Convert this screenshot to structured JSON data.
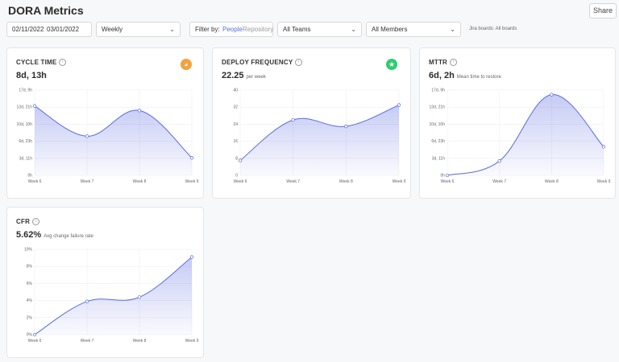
{
  "page": {
    "title": "DORA Metrics",
    "share_label": "Share"
  },
  "filters": {
    "date_from": "02/11/2022",
    "date_to": "03/01/2022",
    "granularity": "Weekly",
    "filter_by_label": "Filter by:",
    "filter_people": "People",
    "filter_repository": "Repository",
    "teams": "All Teams",
    "members": "All Members",
    "jira_boards": "Jira boards: All boards"
  },
  "colors": {
    "accent": "#5b6be1",
    "fill": "#dfe2fb",
    "badge_orange": "#f4a23a",
    "badge_green": "#2ecc71"
  },
  "cards": [
    {
      "title": "CYCLE TIME",
      "value": "8d, 13h",
      "subtitle": "",
      "badge_icon": "speedometer-icon"
    },
    {
      "title": "DEPLOY FREQUENCY",
      "value": "22.25",
      "subtitle": "per week",
      "badge_icon": "trophy-icon"
    },
    {
      "title": "MTTR",
      "value": "6d, 2h",
      "subtitle": "Mean time to restore",
      "badge_icon": ""
    },
    {
      "title": "CFR",
      "value": "5.62%",
      "subtitle": "Avg change failure rate",
      "badge_icon": ""
    }
  ],
  "chart_data": [
    {
      "type": "area",
      "categories": [
        "Week 6",
        "Week 7",
        "Week 8",
        "Week 9"
      ],
      "y_ticks": [
        "0h",
        "3d, 11h",
        "6d, 23h",
        "10d, 10h",
        "13d, 21h",
        "17d, 9h"
      ],
      "values_hours": [
        408,
        230,
        381,
        103
      ],
      "ylim": [
        0,
        501
      ]
    },
    {
      "type": "area",
      "categories": [
        "Week 6",
        "Week 7",
        "Week 8",
        "Week 9"
      ],
      "y_ticks": [
        "0",
        "8",
        "16",
        "24",
        "32",
        "40"
      ],
      "values": [
        7,
        26,
        23,
        33
      ],
      "ylim": [
        0,
        40
      ]
    },
    {
      "type": "area",
      "categories": [
        "Week 6",
        "Week 7",
        "Week 8",
        "Week 9"
      ],
      "y_ticks": [
        "0h",
        "3d, 11h",
        "6d, 23h",
        "10d, 10h",
        "13d, 21h",
        "17d, 9h"
      ],
      "values_hours": [
        0,
        70,
        395,
        140
      ],
      "ylim": [
        0,
        417
      ]
    },
    {
      "type": "area",
      "categories": [
        "Week 6",
        "Week 7",
        "Week 8",
        "Week 9"
      ],
      "y_ticks": [
        "0%",
        "2%",
        "4%",
        "6%",
        "8%",
        "10%"
      ],
      "values": [
        0,
        3.9,
        4.4,
        9.1
      ],
      "ylim": [
        0,
        10
      ]
    }
  ]
}
